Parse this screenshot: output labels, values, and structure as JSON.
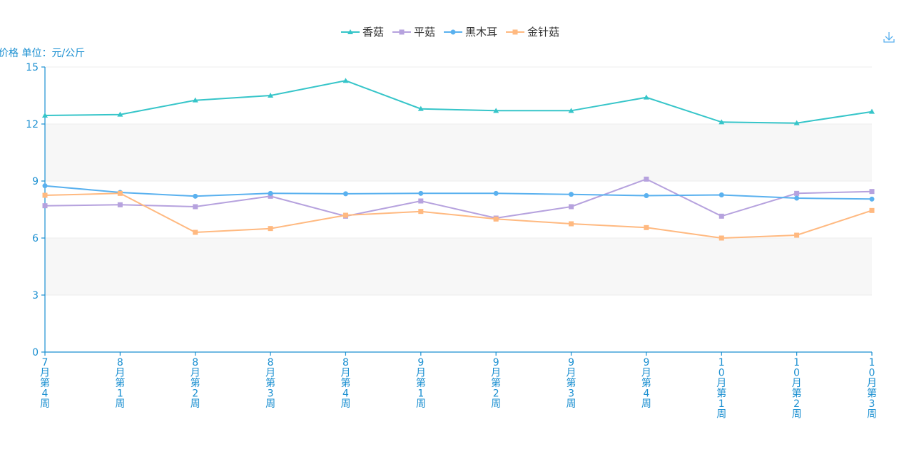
{
  "chart_data": {
    "type": "line",
    "ylabel": "价格 单位：元/公斤",
    "ylim": [
      0,
      15
    ],
    "yticks": [
      "0",
      "3",
      "6",
      "9",
      "12",
      "15"
    ],
    "grid_bands": true,
    "legend_position": "top-center",
    "categories": [
      "7月第4周",
      "8月第1周",
      "8月第2周",
      "8月第3周",
      "8月第4周",
      "9月第1周",
      "9月第2周",
      "9月第3周",
      "9月第4周",
      "10月第1周",
      "10月第2周",
      "10月第3周"
    ],
    "series": [
      {
        "name": "香菇",
        "color": "#36c5c9",
        "marker": "triangle",
        "values": [
          12.45,
          12.5,
          13.25,
          13.5,
          14.28,
          12.8,
          12.7,
          12.7,
          13.4,
          12.1,
          12.05,
          12.65
        ]
      },
      {
        "name": "平菇",
        "color": "#b6a2de",
        "marker": "square",
        "values": [
          7.7,
          7.75,
          7.65,
          8.2,
          7.15,
          7.95,
          7.05,
          7.65,
          9.1,
          7.15,
          8.35,
          8.45
        ]
      },
      {
        "name": "黑木耳",
        "color": "#5ab1ef",
        "marker": "circle",
        "values": [
          8.75,
          8.4,
          8.2,
          8.35,
          8.33,
          8.35,
          8.35,
          8.3,
          8.23,
          8.27,
          8.1,
          8.05
        ]
      },
      {
        "name": "金针菇",
        "color": "#ffb980",
        "marker": "square",
        "values": [
          8.25,
          8.35,
          6.3,
          6.5,
          7.2,
          7.4,
          7.0,
          6.75,
          6.55,
          6.0,
          6.15,
          7.45
        ]
      }
    ]
  },
  "toolbar": {
    "download_icon": "download-icon",
    "accent_color": "#1a8fd1"
  }
}
